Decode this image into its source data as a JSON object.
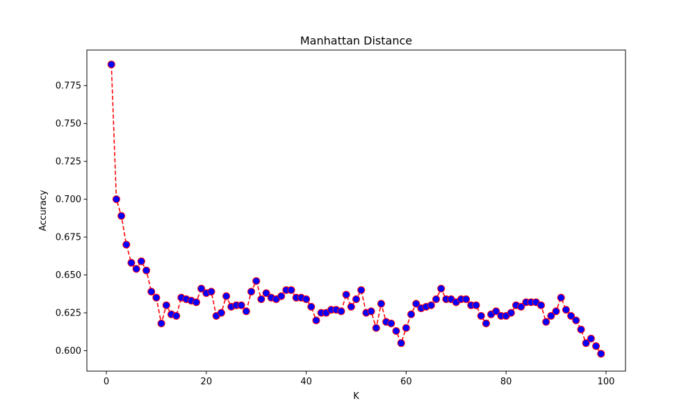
{
  "chart_data": {
    "type": "line",
    "title": "Manhattan Distance",
    "xlabel": "K",
    "ylabel": "Accuracy",
    "xlim": [
      -3.9,
      103.9
    ],
    "ylim": [
      0.5865,
      0.7985
    ],
    "xticks": [
      0,
      20,
      40,
      60,
      80,
      100
    ],
    "yticks": [
      0.6,
      0.625,
      0.65,
      0.675,
      0.7,
      0.725,
      0.75,
      0.775
    ],
    "grid": false,
    "line_style": "dashed",
    "line_color": "#ff0000",
    "marker": "circle",
    "marker_face_color": "#0000ff",
    "marker_edge_color": "#ff0000",
    "series": [
      {
        "x": [
          1,
          2,
          3,
          4,
          5,
          6,
          7,
          8,
          9,
          10,
          11,
          12,
          13,
          14,
          15,
          16,
          17,
          18,
          19,
          20,
          21,
          22,
          23,
          24,
          25,
          26,
          27,
          28,
          29,
          30,
          31,
          32,
          33,
          34,
          35,
          36,
          37,
          38,
          39,
          40,
          41,
          42,
          43,
          44,
          45,
          46,
          47,
          48,
          49,
          50,
          51,
          52,
          53,
          54,
          55,
          56,
          57,
          58,
          59,
          60,
          61,
          62,
          63,
          64,
          65,
          66,
          67,
          68,
          69,
          70,
          71,
          72,
          73,
          74,
          75,
          76,
          77,
          78,
          79,
          80,
          81,
          82,
          83,
          84,
          85,
          86,
          87,
          88,
          89,
          90,
          91,
          92,
          93,
          94,
          95,
          96,
          97,
          98,
          99
        ],
        "values": [
          0.789,
          0.7,
          0.689,
          0.67,
          0.658,
          0.654,
          0.659,
          0.653,
          0.639,
          0.635,
          0.618,
          0.63,
          0.624,
          0.623,
          0.635,
          0.634,
          0.633,
          0.632,
          0.641,
          0.638,
          0.639,
          0.623,
          0.625,
          0.636,
          0.629,
          0.63,
          0.63,
          0.626,
          0.639,
          0.646,
          0.634,
          0.638,
          0.635,
          0.634,
          0.636,
          0.64,
          0.64,
          0.635,
          0.635,
          0.634,
          0.629,
          0.62,
          0.625,
          0.625,
          0.627,
          0.627,
          0.626,
          0.637,
          0.629,
          0.634,
          0.64,
          0.625,
          0.626,
          0.615,
          0.631,
          0.619,
          0.618,
          0.613,
          0.605,
          0.615,
          0.624,
          0.631,
          0.628,
          0.629,
          0.63,
          0.634,
          0.641,
          0.634,
          0.634,
          0.632,
          0.634,
          0.634,
          0.63,
          0.63,
          0.623,
          0.618,
          0.624,
          0.626,
          0.623,
          0.623,
          0.625,
          0.63,
          0.629,
          0.632,
          0.632,
          0.632,
          0.63,
          0.619,
          0.623,
          0.626,
          0.635,
          0.627,
          0.623,
          0.62,
          0.614,
          0.605,
          0.608,
          0.603,
          0.598
        ]
      }
    ]
  }
}
